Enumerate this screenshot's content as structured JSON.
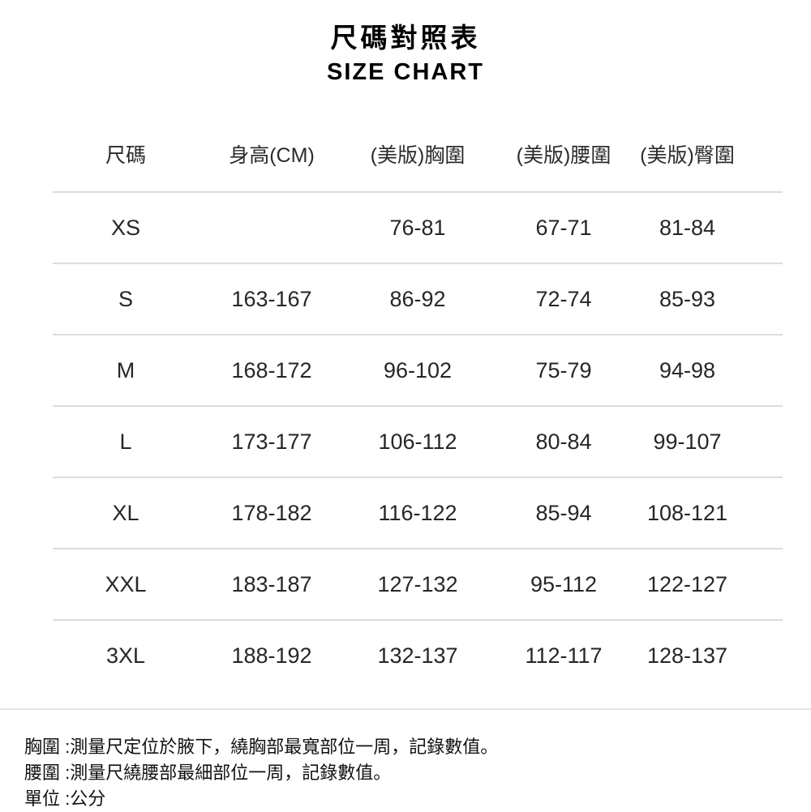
{
  "title": {
    "zh": "尺碼對照表",
    "en": "SIZE CHART"
  },
  "table": {
    "headers": [
      "尺碼",
      "身高(CM)",
      "(美版)胸圍",
      "(美版)腰圍",
      "(美版)臀圍"
    ],
    "rows": [
      [
        "XS",
        "",
        "76-81",
        "67-71",
        "81-84"
      ],
      [
        "S",
        "163-167",
        "86-92",
        "72-74",
        "85-93"
      ],
      [
        "M",
        "168-172",
        "96-102",
        "75-79",
        "94-98"
      ],
      [
        "L",
        "173-177",
        "106-112",
        "80-84",
        "99-107"
      ],
      [
        "XL",
        "178-182",
        "116-122",
        "85-94",
        "108-121"
      ],
      [
        "XXL",
        "183-187",
        "127-132",
        "95-112",
        "122-127"
      ],
      [
        "3XL",
        "188-192",
        "132-137",
        "112-117",
        "128-137"
      ]
    ]
  },
  "notes": [
    "胸圍 :測量尺定位於腋下，繞胸部最寬部位一周，記錄數值。",
    "腰圍 :測量尺繞腰部最細部位一周，記錄數值。",
    "單位 :公分"
  ],
  "colors": {
    "background": "#ffffff",
    "text": "#222222",
    "divider": "#dcdcdc"
  }
}
